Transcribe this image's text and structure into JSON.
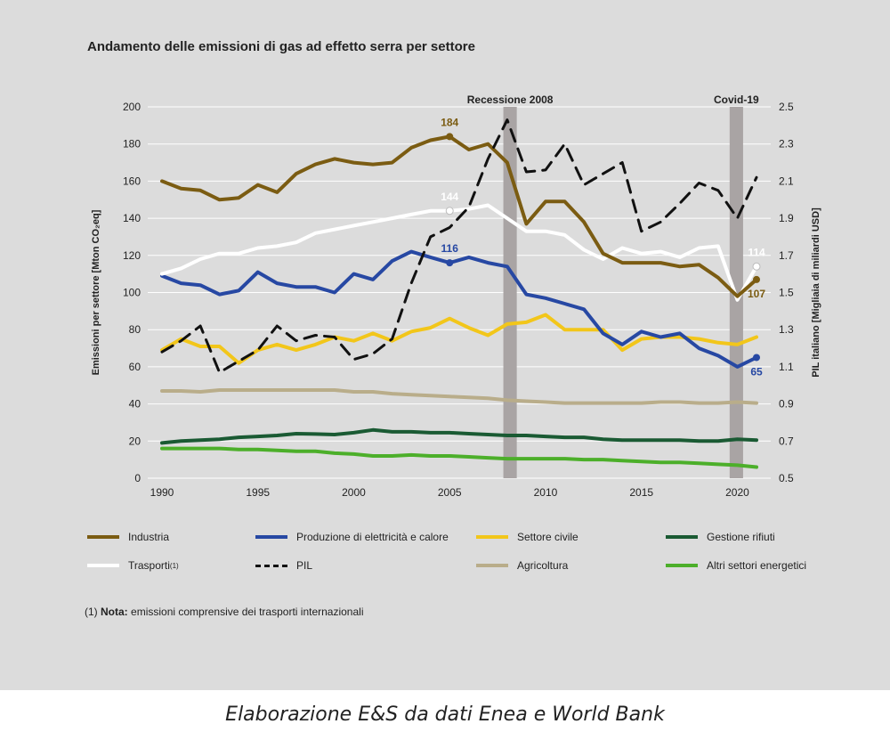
{
  "title": "Andamento delle emissioni di gas ad effetto serra per settore",
  "caption": "Elaborazione E&S da dati Enea e World Bank",
  "footnote": {
    "marker": "(1)",
    "label": "Nota:",
    "text": "emissioni comprensive dei trasporti internazionali"
  },
  "colors": {
    "panel": "#dcdcdc",
    "grid": "#ffffff",
    "band": "#a9a4a4"
  },
  "chart_data": {
    "type": "line",
    "x": [
      1990,
      1991,
      1992,
      1993,
      1994,
      1995,
      1996,
      1997,
      1998,
      1999,
      2000,
      2001,
      2002,
      2003,
      2004,
      2005,
      2006,
      2007,
      2008,
      2009,
      2010,
      2011,
      2012,
      2013,
      2014,
      2015,
      2016,
      2017,
      2018,
      2019,
      2020,
      2021
    ],
    "xticks": [
      1990,
      1995,
      2000,
      2005,
      2010,
      2015,
      2020
    ],
    "xlim": [
      1990,
      2021
    ],
    "ylabel": "Emissioni per settore [Mton CO₂eq]",
    "ylim": [
      0,
      200
    ],
    "yticks": [
      0,
      20,
      40,
      60,
      80,
      100,
      120,
      140,
      160,
      180,
      200
    ],
    "y2label": "PIL italiano [Migliaia di miliardi USD]",
    "y2lim": [
      0.5,
      2.5
    ],
    "y2ticks": [
      "0.5",
      "0.7",
      "0.9",
      "1.1",
      "1.3",
      "1.5",
      "1.7",
      "1.9",
      "2.1",
      "2.3",
      "2.5"
    ],
    "grid": "horizontal",
    "bands": [
      {
        "label": "Recessione 2008",
        "from": 2007.8,
        "to": 2008.5
      },
      {
        "label": "Covid-19",
        "from": 2019.6,
        "to": 2020.3
      }
    ],
    "series": [
      {
        "name": "Industria",
        "color": "#7b5c12",
        "axis": "left",
        "dash": false,
        "values": [
          160,
          156,
          155,
          150,
          151,
          158,
          154,
          164,
          169,
          172,
          170,
          169,
          170,
          178,
          182,
          184,
          177,
          180,
          170,
          137,
          149,
          149,
          138,
          121,
          116,
          116,
          116,
          114,
          115,
          108,
          98,
          107
        ],
        "labels": [
          {
            "x": 2005,
            "text": "184",
            "pos": "above"
          },
          {
            "x": 2021,
            "text": "107",
            "pos": "below"
          }
        ]
      },
      {
        "name": "Produzione di elettricità e calore",
        "color": "#2748a3",
        "axis": "left",
        "dash": false,
        "values": [
          109,
          105,
          104,
          99,
          101,
          111,
          105,
          103,
          103,
          100,
          110,
          107,
          117,
          122,
          119,
          116,
          119,
          116,
          114,
          99,
          97,
          94,
          91,
          78,
          72,
          79,
          76,
          78,
          70,
          66,
          60,
          65
        ],
        "labels": [
          {
            "x": 2005,
            "text": "116",
            "pos": "above"
          },
          {
            "x": 2021,
            "text": "65",
            "pos": "below"
          }
        ]
      },
      {
        "name": "Settore civile",
        "color": "#f2c61a",
        "axis": "left",
        "dash": false,
        "values": [
          69,
          75,
          71,
          71,
          62,
          69,
          72,
          69,
          72,
          76,
          74,
          78,
          74,
          79,
          81,
          86,
          81,
          77,
          83,
          84,
          88,
          80,
          80,
          80,
          69,
          75,
          76,
          76,
          75,
          73,
          72,
          76
        ],
        "labels": []
      },
      {
        "name": "Gestione rifiuti",
        "color": "#1a5a33",
        "axis": "left",
        "dash": false,
        "values": [
          19,
          20,
          20.5,
          21,
          22,
          22.5,
          23,
          24,
          23.8,
          23.5,
          24.5,
          26,
          25,
          25,
          24.5,
          24.5,
          24,
          23.5,
          23,
          23,
          22.5,
          22,
          22,
          21,
          20.5,
          20.5,
          20.5,
          20.5,
          20,
          20,
          21,
          20.5
        ],
        "labels": []
      },
      {
        "name": "Trasporti",
        "note": "(1)",
        "color": "#ffffff",
        "axis": "left",
        "dash": false,
        "values": [
          110,
          113,
          118,
          121,
          121,
          124,
          125,
          127,
          132,
          134,
          136,
          138,
          140,
          142,
          144,
          144,
          145,
          147,
          140,
          133,
          133,
          131,
          123,
          118,
          124,
          121,
          122,
          119,
          124,
          125,
          96,
          114
        ],
        "labels": [
          {
            "x": 2005,
            "text": "144",
            "pos": "above"
          },
          {
            "x": 2021,
            "text": "114",
            "pos": "above"
          }
        ]
      },
      {
        "name": "PIL",
        "color": "#111111",
        "axis": "right",
        "dash": true,
        "values": [
          1.18,
          1.24,
          1.32,
          1.07,
          1.13,
          1.19,
          1.32,
          1.24,
          1.27,
          1.26,
          1.14,
          1.17,
          1.25,
          1.55,
          1.8,
          1.85,
          1.96,
          2.22,
          2.43,
          2.15,
          2.16,
          2.3,
          2.08,
          2.14,
          2.2,
          1.83,
          1.88,
          1.98,
          2.09,
          2.05,
          1.9,
          2.12
        ],
        "labels": []
      },
      {
        "name": "Agricoltura",
        "color": "#b9ad8a",
        "axis": "left",
        "dash": false,
        "values": [
          47,
          47,
          46.5,
          47.5,
          47.5,
          47.5,
          47.5,
          47.5,
          47.5,
          47.5,
          46.5,
          46.5,
          45.5,
          45,
          44.5,
          44,
          43.5,
          43,
          42,
          41.5,
          41,
          40.5,
          40.5,
          40.5,
          40.5,
          40.5,
          41,
          41,
          40.5,
          40.5,
          41,
          40.5
        ],
        "labels": []
      },
      {
        "name": "Altri settori energetici",
        "color": "#4caf2a",
        "axis": "left",
        "dash": false,
        "values": [
          16,
          16,
          16,
          16,
          15.5,
          15.5,
          15,
          14.5,
          14.5,
          13.5,
          13,
          12,
          12,
          12.5,
          12,
          12,
          11.5,
          11,
          10.5,
          10.5,
          10.5,
          10.5,
          10,
          10,
          9.5,
          9,
          8.5,
          8.5,
          8,
          7.5,
          7,
          6
        ],
        "labels": []
      }
    ]
  }
}
